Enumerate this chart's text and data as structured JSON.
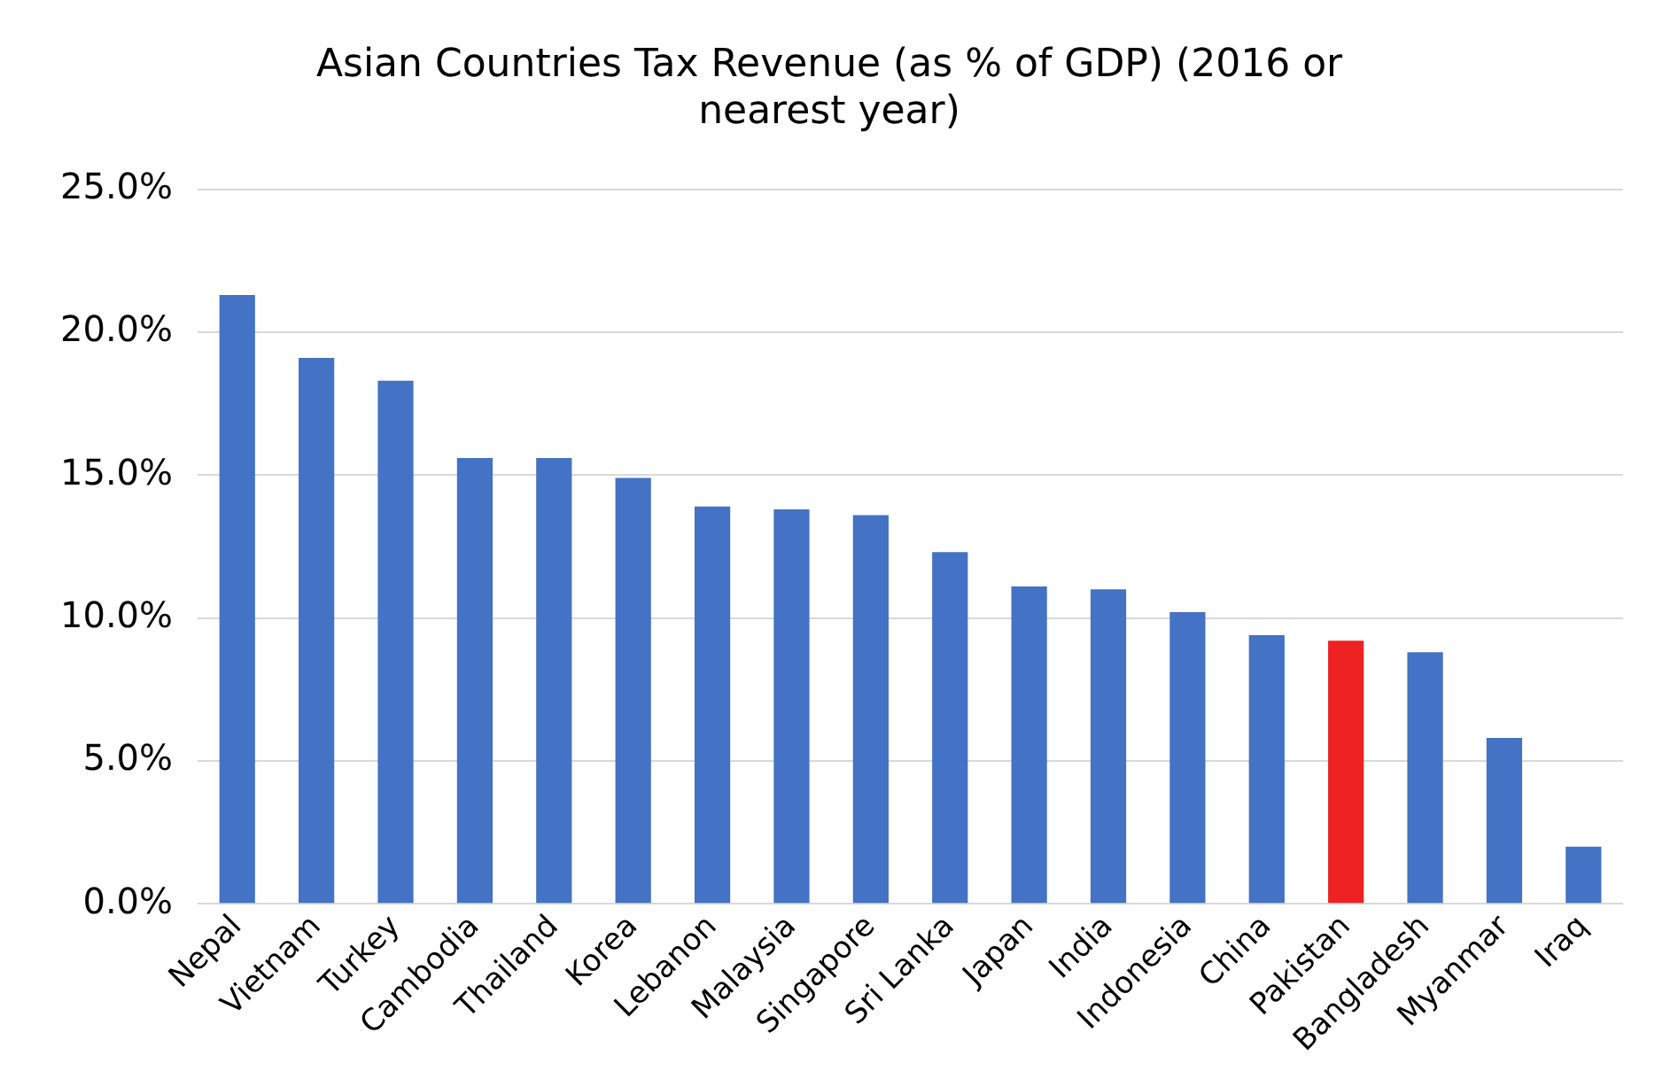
{
  "chart_data": {
    "type": "bar",
    "title": "Asian Countries Tax Revenue (as % of GDP) (2016 or nearest year)",
    "categories": [
      "Nepal",
      "Vietnam",
      "Turkey",
      "Cambodia",
      "Thailand",
      "Korea",
      "Lebanon",
      "Malaysia",
      "Singapore",
      "Sri Lanka",
      "Japan",
      "India",
      "Indonesia",
      "China",
      "Pakistan",
      "Bangladesh",
      "Myanmar",
      "Iraq"
    ],
    "values": [
      21.3,
      19.1,
      18.3,
      15.6,
      15.6,
      14.9,
      13.9,
      13.8,
      13.6,
      12.3,
      11.1,
      11.0,
      10.2,
      9.4,
      9.2,
      8.8,
      5.8,
      2.0
    ],
    "colors": [
      "#4472c4",
      "#4472c4",
      "#4472c4",
      "#4472c4",
      "#4472c4",
      "#4472c4",
      "#4472c4",
      "#4472c4",
      "#4472c4",
      "#4472c4",
      "#4472c4",
      "#4472c4",
      "#4472c4",
      "#4472c4",
      "#ee2222",
      "#4472c4",
      "#4472c4",
      "#4472c4"
    ],
    "ylim": [
      0,
      25
    ],
    "yticks": [
      {
        "value": 0,
        "label": "0.0%"
      },
      {
        "value": 5,
        "label": "5.0%"
      },
      {
        "value": 10,
        "label": "10.0%"
      },
      {
        "value": 15,
        "label": "15.0%"
      },
      {
        "value": 20,
        "label": "20.0%"
      },
      {
        "value": 25,
        "label": "25.0%"
      }
    ],
    "grid": "y",
    "legend": false
  }
}
